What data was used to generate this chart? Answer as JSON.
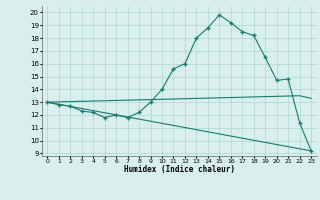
{
  "title": "",
  "xlabel": "Humidex (Indice chaleur)",
  "xlim": [
    -0.5,
    23.5
  ],
  "ylim": [
    8.8,
    20.5
  ],
  "yticks": [
    9,
    10,
    11,
    12,
    13,
    14,
    15,
    16,
    17,
    18,
    19,
    20
  ],
  "xticks": [
    0,
    1,
    2,
    3,
    4,
    5,
    6,
    7,
    8,
    9,
    10,
    11,
    12,
    13,
    14,
    15,
    16,
    17,
    18,
    19,
    20,
    21,
    22,
    23
  ],
  "background_color": "#d8efed",
  "grid_color": "#b0d8d4",
  "line_color": "#1a7a6e",
  "curve1_x": [
    0,
    1,
    2,
    3,
    4,
    5,
    6,
    7,
    8,
    9,
    10,
    11,
    12,
    13,
    14,
    15,
    16,
    17,
    18,
    19,
    20,
    21,
    22,
    23
  ],
  "curve1_y": [
    13.0,
    12.8,
    12.7,
    12.3,
    12.2,
    11.8,
    12.0,
    11.8,
    12.2,
    13.0,
    14.0,
    15.6,
    16.0,
    18.0,
    18.8,
    19.8,
    19.2,
    18.5,
    18.2,
    16.5,
    14.7,
    14.8,
    11.4,
    9.2
  ],
  "curve2_x": [
    0,
    9,
    22,
    23
  ],
  "curve2_y": [
    13.0,
    13.2,
    13.5,
    13.3
  ],
  "curve3_x": [
    0,
    23
  ],
  "curve3_y": [
    13.0,
    9.2
  ]
}
